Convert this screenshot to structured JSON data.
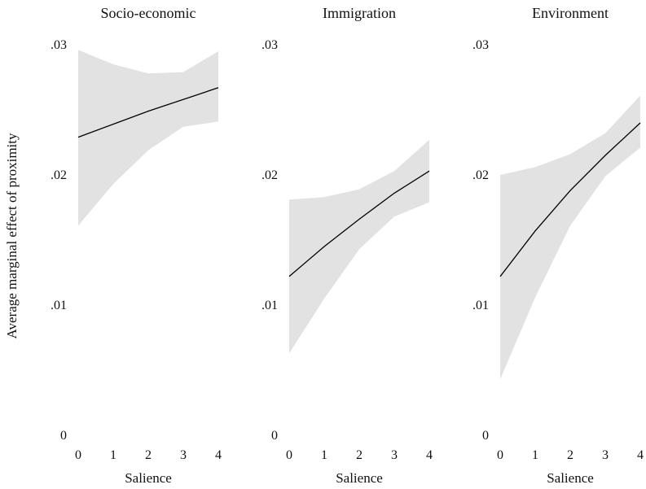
{
  "chart_data": {
    "type": "line",
    "ylabel": "Average marginal effect of proximity",
    "ylim": [
      0,
      0.03
    ],
    "y_ticks": [
      {
        "value": 0.03,
        "label": ".03"
      },
      {
        "value": 0.02,
        "label": ".02"
      },
      {
        "value": 0.01,
        "label": ".01"
      },
      {
        "value": 0,
        "label": "0"
      }
    ],
    "x_ticks": [
      "0",
      "1",
      "2",
      "3",
      "4"
    ],
    "grid": false,
    "panels": [
      {
        "title": "Socio-economic",
        "xlabel": "Salience",
        "x": [
          0,
          1,
          2,
          3,
          4
        ],
        "estimate": [
          0.0229,
          0.0239,
          0.0249,
          0.0258,
          0.0267
        ],
        "lower": [
          0.0161,
          0.0193,
          0.0219,
          0.0237,
          0.0241
        ],
        "upper": [
          0.0296,
          0.0285,
          0.0278,
          0.0279,
          0.0295
        ]
      },
      {
        "title": "Immigration",
        "xlabel": "Salience",
        "x": [
          0,
          1,
          2,
          3,
          4
        ],
        "estimate": [
          0.0122,
          0.0145,
          0.0166,
          0.0186,
          0.0203
        ],
        "lower": [
          0.0063,
          0.0105,
          0.0143,
          0.0168,
          0.0179
        ],
        "upper": [
          0.0181,
          0.0183,
          0.0189,
          0.0203,
          0.0227
        ]
      },
      {
        "title": "Environment",
        "xlabel": "Salience",
        "x": [
          0,
          1,
          2,
          3,
          4
        ],
        "estimate": [
          0.0122,
          0.0157,
          0.0188,
          0.0215,
          0.024
        ],
        "lower": [
          0.0043,
          0.0106,
          0.0161,
          0.0199,
          0.0221
        ],
        "upper": [
          0.02,
          0.0206,
          0.0216,
          0.0232,
          0.0261
        ]
      }
    ]
  }
}
